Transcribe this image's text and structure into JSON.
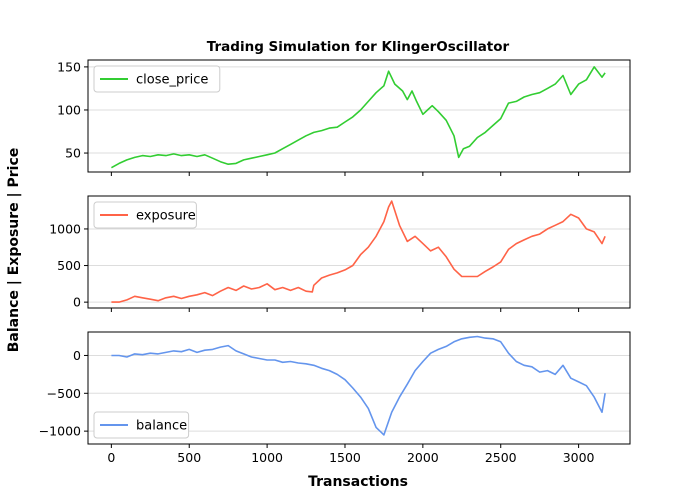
{
  "chart_data": {
    "type": "line",
    "title": "Trading Simulation for KlingerOscillator",
    "xlabel": "Transactions",
    "ylabel": "Balance | Exposure | Price",
    "xlim": [
      -150,
      3330
    ],
    "x_ticks": [
      0,
      500,
      1000,
      1500,
      2000,
      2500,
      3000
    ],
    "grid": "horizontal",
    "panels": [
      {
        "name": "price",
        "ylim": [
          28,
          158
        ],
        "y_ticks": [
          50,
          100,
          150
        ],
        "legend": "upper-left",
        "series": [
          {
            "name": "close_price",
            "color": "#32cd32",
            "x": [
              0,
              50,
              100,
              150,
              200,
              250,
              300,
              350,
              400,
              450,
              500,
              550,
              600,
              650,
              700,
              750,
              800,
              850,
              900,
              950,
              1000,
              1050,
              1100,
              1150,
              1200,
              1250,
              1300,
              1350,
              1400,
              1450,
              1500,
              1550,
              1600,
              1650,
              1700,
              1750,
              1780,
              1820,
              1870,
              1900,
              1930,
              1960,
              2000,
              2030,
              2060,
              2100,
              2150,
              2200,
              2230,
              2260,
              2300,
              2350,
              2400,
              2450,
              2500,
              2550,
              2600,
              2650,
              2700,
              2750,
              2800,
              2850,
              2900,
              2950,
              3000,
              3050,
              3100,
              3150,
              3170
            ],
            "values": [
              33,
              38,
              42,
              45,
              47,
              46,
              48,
              47,
              49,
              47,
              48,
              46,
              48,
              44,
              40,
              37,
              38,
              42,
              44,
              46,
              48,
              50,
              55,
              60,
              65,
              70,
              74,
              76,
              79,
              80,
              86,
              92,
              100,
              110,
              120,
              128,
              145,
              130,
              122,
              112,
              122,
              110,
              95,
              100,
              105,
              98,
              88,
              70,
              45,
              55,
              58,
              68,
              74,
              82,
              90,
              108,
              110,
              115,
              118,
              120,
              125,
              130,
              140,
              118,
              130,
              135,
              150,
              138,
              143
            ]
          }
        ]
      },
      {
        "name": "exposure",
        "ylim": [
          -80,
          1450
        ],
        "y_ticks": [
          0,
          500,
          1000
        ],
        "legend": "upper-left",
        "series": [
          {
            "name": "exposure",
            "color": "#ff6347",
            "x": [
              0,
              50,
              100,
              150,
              200,
              250,
              300,
              350,
              400,
              450,
              500,
              550,
              600,
              650,
              700,
              750,
              800,
              850,
              900,
              950,
              1000,
              1050,
              1100,
              1150,
              1200,
              1250,
              1290,
              1300,
              1350,
              1400,
              1450,
              1500,
              1550,
              1600,
              1650,
              1700,
              1750,
              1780,
              1800,
              1850,
              1900,
              1950,
              2000,
              2050,
              2100,
              2150,
              2200,
              2250,
              2300,
              2350,
              2400,
              2450,
              2500,
              2550,
              2600,
              2650,
              2700,
              2750,
              2800,
              2850,
              2900,
              2950,
              3000,
              3050,
              3100,
              3150,
              3170
            ],
            "values": [
              0,
              0,
              30,
              80,
              60,
              40,
              20,
              60,
              80,
              50,
              80,
              100,
              130,
              90,
              150,
              200,
              160,
              220,
              180,
              200,
              250,
              170,
              200,
              160,
              200,
              150,
              140,
              230,
              330,
              370,
              400,
              440,
              500,
              650,
              750,
              900,
              1100,
              1300,
              1380,
              1050,
              830,
              900,
              800,
              700,
              750,
              620,
              450,
              350,
              350,
              350,
              420,
              480,
              550,
              720,
              800,
              850,
              900,
              930,
              1000,
              1050,
              1100,
              1200,
              1150,
              1000,
              960,
              800,
              900
            ]
          }
        ]
      },
      {
        "name": "balance",
        "ylim": [
          -1170,
          310
        ],
        "y_ticks": [
          -1000,
          -500,
          0
        ],
        "legend": "lower-left",
        "series": [
          {
            "name": "balance",
            "color": "#6495ed",
            "x": [
              0,
              50,
              100,
              150,
              200,
              250,
              300,
              350,
              400,
              450,
              500,
              550,
              600,
              650,
              700,
              750,
              800,
              850,
              900,
              950,
              1000,
              1050,
              1100,
              1150,
              1200,
              1250,
              1300,
              1350,
              1400,
              1450,
              1500,
              1550,
              1600,
              1650,
              1700,
              1750,
              1800,
              1850,
              1900,
              1950,
              2000,
              2050,
              2100,
              2150,
              2200,
              2250,
              2300,
              2350,
              2400,
              2450,
              2500,
              2550,
              2600,
              2650,
              2700,
              2750,
              2800,
              2850,
              2900,
              2950,
              3000,
              3050,
              3100,
              3150,
              3170
            ],
            "values": [
              0,
              0,
              -20,
              20,
              10,
              30,
              20,
              40,
              60,
              50,
              80,
              40,
              70,
              80,
              110,
              130,
              60,
              20,
              -20,
              -40,
              -60,
              -60,
              -90,
              -80,
              -100,
              -110,
              -130,
              -170,
              -200,
              -250,
              -320,
              -430,
              -550,
              -700,
              -950,
              -1050,
              -750,
              -550,
              -380,
              -200,
              -80,
              30,
              80,
              120,
              180,
              220,
              240,
              250,
              230,
              220,
              180,
              30,
              -80,
              -130,
              -150,
              -220,
              -200,
              -250,
              -130,
              -300,
              -350,
              -400,
              -550,
              -750,
              -500
            ]
          }
        ]
      }
    ]
  }
}
